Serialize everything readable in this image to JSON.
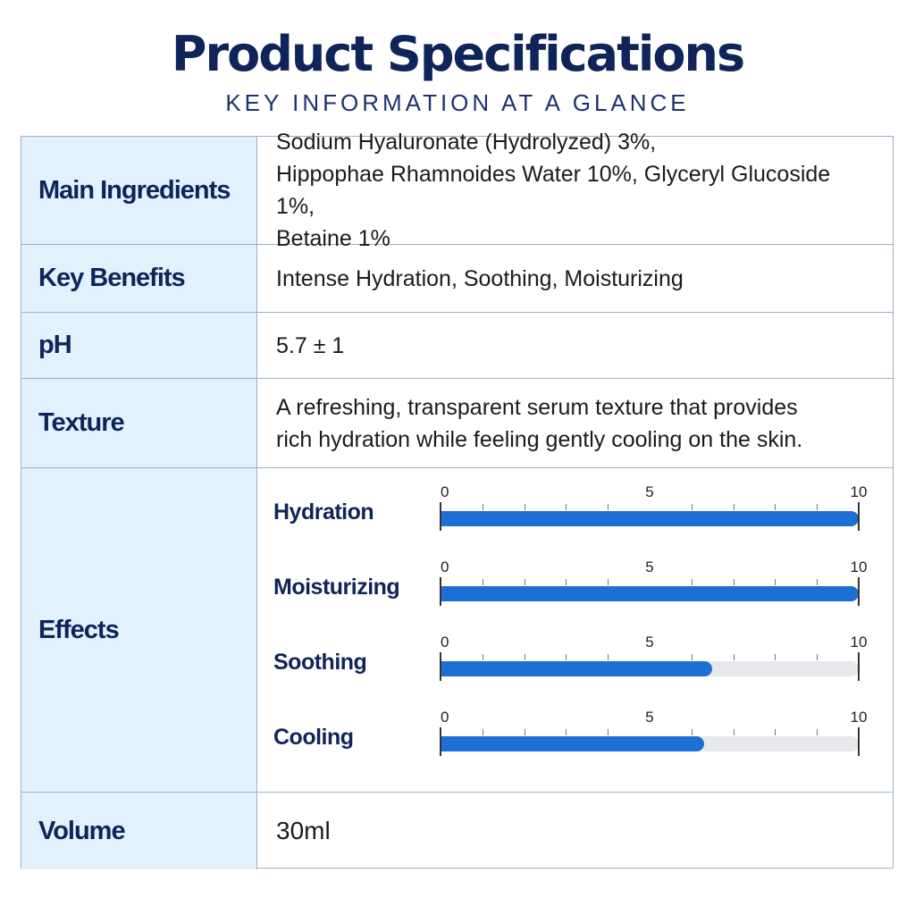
{
  "header": {
    "title": "Product Specifications",
    "subtitle": "KEY INFORMATION AT A GLANCE"
  },
  "specs": {
    "main_ingredients": {
      "label": "Main Ingredients",
      "line1": "Sodium Hyaluronate (Hydrolyzed) 3%,",
      "line2": "Hippophae Rhamnoides Water 10%, Glyceryl Glucoside 1%,",
      "line3": "Betaine 1%"
    },
    "key_benefits": {
      "label": "Key Benefits",
      "value": "Intense Hydration, Soothing, Moisturizing"
    },
    "ph": {
      "label": "pH",
      "value": "5.7 ± 1"
    },
    "texture": {
      "label": "Texture",
      "line1": "A refreshing, transparent serum texture that provides",
      "line2": "rich hydration while feeling gently cooling on the skin."
    },
    "effects": {
      "label": "Effects",
      "scale": {
        "min": "0",
        "mid": "5",
        "max": "10",
        "max_value": 10
      },
      "items": [
        {
          "name": "Hydration",
          "value": 10
        },
        {
          "name": "Moisturizing",
          "value": 10
        },
        {
          "name": "Soothing",
          "value": 6.5
        },
        {
          "name": "Cooling",
          "value": 6.3
        }
      ]
    },
    "volume": {
      "label": "Volume",
      "value": "30ml"
    }
  },
  "colors": {
    "title": "#0f2459",
    "label_bg": "#e3f1fc",
    "bar_fill": "#1e6fd4",
    "bar_track": "#e6e8ec"
  }
}
